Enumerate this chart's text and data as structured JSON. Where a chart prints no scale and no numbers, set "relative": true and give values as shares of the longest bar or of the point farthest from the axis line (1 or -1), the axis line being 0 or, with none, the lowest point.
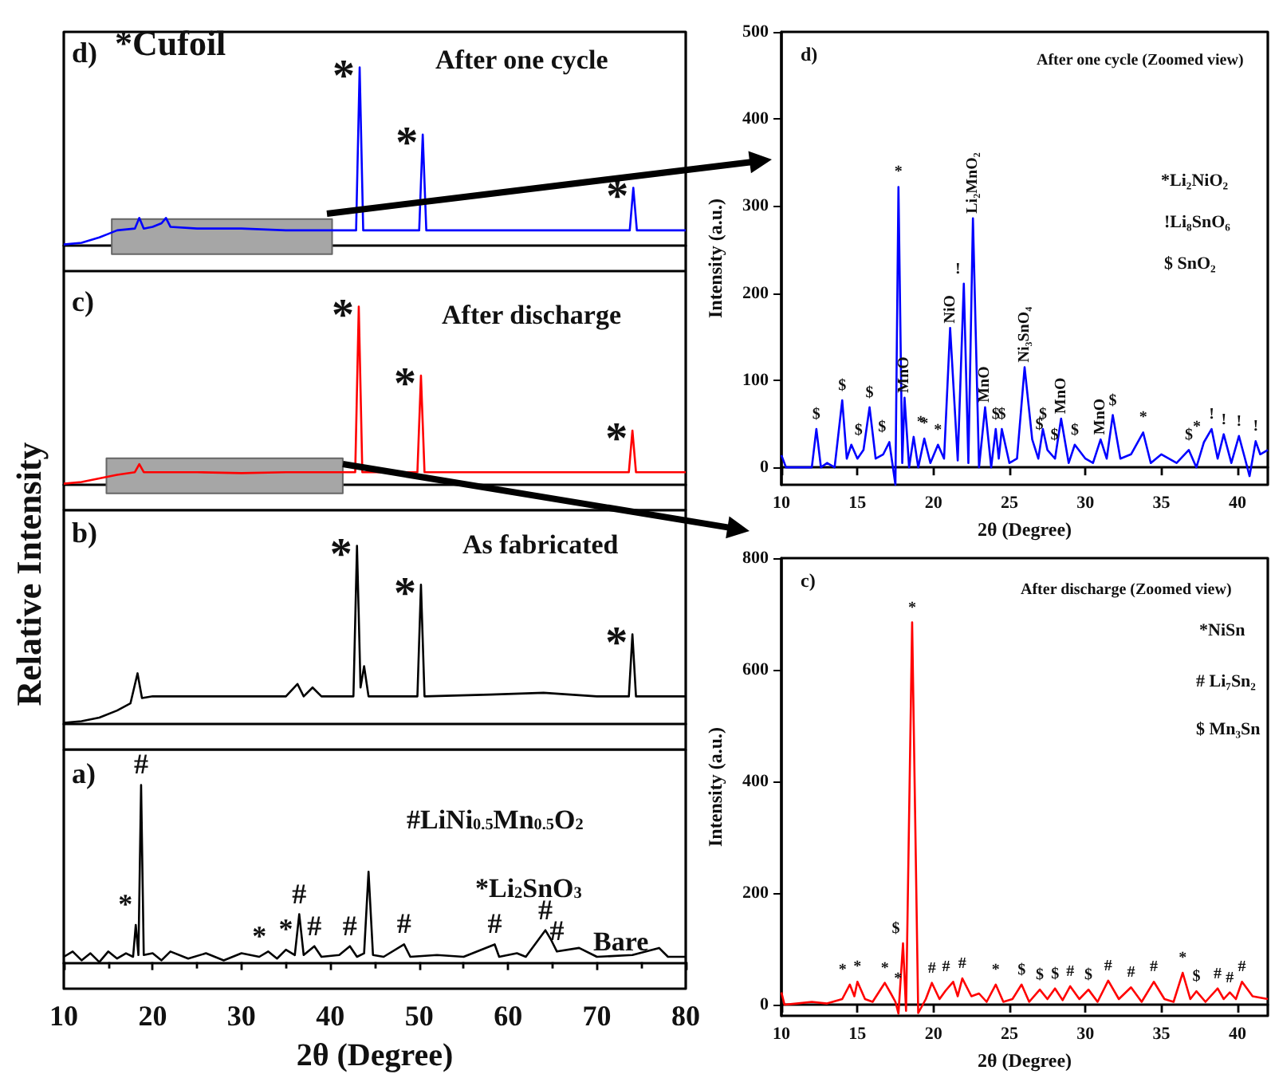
{
  "chart_data": [
    {
      "type": "line",
      "relative": true,
      "title": "After one cycle",
      "marker": "none",
      "tick_labels": false,
      "xlim": [
        10,
        80
      ],
      "x": [
        10,
        12,
        14,
        15,
        16,
        18,
        18.5,
        19,
        20,
        21,
        21.5,
        22,
        25,
        30,
        35,
        40,
        42.9,
        43.3,
        43.7,
        50,
        50.4,
        50.8,
        73.7,
        74.1,
        74.5,
        80
      ],
      "series": [
        {
          "color": "#0000ff",
          "values": [
            0,
            0.01,
            0.04,
            0.06,
            0.08,
            0.09,
            0.15,
            0.09,
            0.1,
            0.12,
            0.15,
            0.1,
            0.09,
            0.09,
            0.08,
            0.08,
            0.08,
            1,
            0.08,
            0.08,
            0.62,
            0.08,
            0.08,
            0.32,
            0.08,
            0.08
          ]
        }
      ],
      "bands": [
        {
          "axis": "x",
          "from": 15.4,
          "to": 40.2,
          "color": "#a6a6a6"
        }
      ],
      "annotations": [
        "d)",
        "*Cufoil",
        {
          "text": "*",
          "x": 43.3,
          "y": 1
        },
        {
          "text": "*",
          "x": 50.4,
          "y": 0.62
        },
        {
          "text": "*",
          "x": 74.1,
          "y": 0.32
        }
      ]
    },
    {
      "type": "line",
      "relative": true,
      "title": "After discharge",
      "marker": "none",
      "tick_labels": false,
      "xlim": [
        10,
        80
      ],
      "x": [
        10,
        12,
        14,
        16,
        18,
        18.5,
        19,
        25,
        30,
        35,
        40,
        42.8,
        43.2,
        43.6,
        49.8,
        50.2,
        50.6,
        73.6,
        74,
        74.4,
        80
      ],
      "series": [
        {
          "color": "#ff0000",
          "values": [
            0,
            0.01,
            0.03,
            0.05,
            0.065,
            0.11,
            0.065,
            0.065,
            0.06,
            0.065,
            0.065,
            0.065,
            1,
            0.065,
            0.065,
            0.61,
            0.065,
            0.065,
            0.3,
            0.065,
            0.065
          ]
        }
      ],
      "bands": [
        {
          "axis": "x",
          "from": 14.8,
          "to": 41.4,
          "color": "#a6a6a6"
        }
      ],
      "annotations": [
        "c)",
        {
          "text": "*",
          "x": 43.2,
          "y": 1
        },
        {
          "text": "*",
          "x": 50.2,
          "y": 0.61
        },
        {
          "text": "*",
          "x": 74,
          "y": 0.3
        }
      ]
    },
    {
      "type": "line",
      "relative": true,
      "title": "As fabricated",
      "ylabel": "Relative Intensity",
      "marker": "none",
      "tick_labels": false,
      "xlim": [
        10,
        80
      ],
      "x": [
        10,
        12,
        14,
        16,
        17.5,
        18.3,
        18.8,
        20,
        25,
        30,
        35,
        36.3,
        37,
        38,
        39,
        42.6,
        43,
        43.4,
        43.8,
        44.3,
        49.8,
        50.2,
        50.6,
        58,
        64,
        70,
        73.6,
        74,
        74.4,
        80
      ],
      "series": [
        {
          "color": "#000000",
          "values": [
            0,
            0.01,
            0.03,
            0.07,
            0.11,
            0.28,
            0.14,
            0.15,
            0.15,
            0.15,
            0.15,
            0.22,
            0.15,
            0.2,
            0.15,
            0.15,
            1,
            0.2,
            0.32,
            0.15,
            0.15,
            0.78,
            0.15,
            0.16,
            0.17,
            0.15,
            0.15,
            0.5,
            0.15,
            0.15
          ]
        }
      ],
      "annotations": [
        "b)",
        {
          "text": "*",
          "x": 43,
          "y": 1
        },
        {
          "text": "*",
          "x": 50.2,
          "y": 0.78
        },
        {
          "text": "*",
          "x": 74,
          "y": 0.5
        }
      ]
    },
    {
      "type": "line",
      "relative": true,
      "xlabel": "2θ (Degree)",
      "marker": "none",
      "tick_labels": "x",
      "xlim": [
        10,
        80
      ],
      "xticks": [
        10,
        20,
        30,
        40,
        50,
        60,
        70,
        80
      ],
      "x": [
        10,
        11,
        12,
        13,
        14,
        15,
        16,
        17,
        17.8,
        18.1,
        18.4,
        18.7,
        19,
        20,
        21,
        22,
        24,
        26,
        28,
        30,
        32,
        33,
        34,
        35,
        36,
        36.5,
        37,
        38.2,
        39,
        41,
        42.2,
        43,
        43.8,
        44.3,
        44.8,
        46,
        48.3,
        49,
        52,
        55,
        58.5,
        59,
        61,
        62,
        64.2,
        64.8,
        65.5,
        68,
        70,
        74,
        77,
        78,
        80
      ],
      "series": [
        {
          "color": "#000000",
          "values": [
            0.03,
            0.06,
            0.01,
            0.05,
            0,
            0.06,
            0.02,
            0.05,
            0.03,
            0.21,
            0.04,
            1,
            0.04,
            0.05,
            0.01,
            0.06,
            0.02,
            0.05,
            0.01,
            0.05,
            0.03,
            0.06,
            0.02,
            0.07,
            0.04,
            0.27,
            0.04,
            0.09,
            0.03,
            0.04,
            0.09,
            0.03,
            0.05,
            0.51,
            0.04,
            0.03,
            0.1,
            0.03,
            0.04,
            0.03,
            0.1,
            0.03,
            0.05,
            0.03,
            0.18,
            0.13,
            0.06,
            0.08,
            0.03,
            0.04,
            0.08,
            0.03,
            0.03
          ]
        }
      ],
      "annotations": [
        "a)",
        "#LiNi$_{0.5}$Mn$_{0.5}$O$_{2}$",
        "*Li$_{2}$SnO$_{3}$",
        "Bare",
        {
          "text": "*",
          "x": 18.1,
          "y": 0.21
        },
        {
          "text": "#",
          "x": 18.7,
          "y": 1
        },
        {
          "text": "*",
          "x": 32,
          "y": 0.03
        },
        {
          "text": "*",
          "x": 35,
          "y": 0.07
        },
        {
          "text": "#",
          "x": 36.5,
          "y": 0.27
        },
        {
          "text": "#",
          "x": 38.2,
          "y": 0.09
        },
        {
          "text": "#",
          "x": 42.2,
          "y": 0.09
        },
        {
          "text": "#",
          "x": 48.3,
          "y": 0.1
        },
        {
          "text": "#",
          "x": 58.5,
          "y": 0.1
        },
        {
          "text": "#",
          "x": 64.2,
          "y": 0.18
        },
        {
          "text": "#",
          "x": 65.5,
          "y": 0.06
        }
      ]
    },
    {
      "type": "line",
      "title": "After one cycle (Zoomed view)",
      "xlabel": "2θ (Degree)",
      "ylabel": "Intensity (a.u.)",
      "marker": "none",
      "xlim": [
        10,
        42
      ],
      "xticks": [
        10,
        15,
        20,
        25,
        30,
        35,
        40
      ],
      "ylim": [
        -20,
        500
      ],
      "yticks": [
        0,
        100,
        200,
        300,
        400,
        500
      ],
      "x": [
        10,
        10.3,
        11,
        12,
        12.3,
        12.6,
        13,
        13.5,
        14,
        14.3,
        14.6,
        15,
        15.4,
        15.8,
        16.2,
        16.7,
        17.1,
        17.5,
        17.7,
        17.95,
        18.1,
        18.4,
        18.7,
        19,
        19.4,
        19.8,
        20.3,
        20.7,
        21.1,
        21.6,
        22,
        22.3,
        22.6,
        23,
        23.4,
        23.8,
        24.1,
        24.3,
        24.5,
        25,
        25.5,
        26,
        26.5,
        26.9,
        27.2,
        27.5,
        28,
        28.4,
        28.9,
        29.3,
        30,
        30.5,
        31,
        31.4,
        31.8,
        32.3,
        33,
        33.8,
        34.3,
        35,
        36,
        36.8,
        37.3,
        37.8,
        38.3,
        38.7,
        39.1,
        39.6,
        40.1,
        40.5,
        40.8,
        41.2,
        41.5,
        42
      ],
      "series": [
        {
          "color": "#0000ff",
          "values": [
            14,
            0,
            0,
            0,
            44,
            0,
            5,
            0,
            77,
            10,
            26,
            10,
            20,
            69,
            10,
            15,
            29,
            -20,
            322,
            5,
            80,
            0,
            35,
            0,
            33,
            5,
            26,
            10,
            160,
            8,
            211,
            5,
            286,
            0,
            69,
            0,
            44,
            10,
            44,
            5,
            10,
            115,
            32,
            10,
            44,
            20,
            10,
            56,
            5,
            26,
            10,
            5,
            32,
            10,
            60,
            10,
            15,
            40,
            5,
            15,
            5,
            20,
            0,
            29,
            44,
            10,
            38,
            5,
            36,
            10,
            -10,
            30,
            15,
            20
          ]
        }
      ],
      "annotations": [
        "d)",
        "*Li₂NiO₂",
        "!Li₈SnO₆",
        "$ SnO₂",
        {
          "text": "$",
          "x": 12.3,
          "y": 44
        },
        {
          "text": "$",
          "x": 14,
          "y": 77
        },
        {
          "text": "$",
          "x": 14.6,
          "y": 26
        },
        {
          "text": "$",
          "x": 15.8,
          "y": 69
        },
        {
          "text": "$",
          "x": 17.1,
          "y": 29
        },
        {
          "text": "*",
          "x": 17.7,
          "y": 322
        },
        {
          "text": "MnO",
          "x": 18.1,
          "y": 80
        },
        {
          "text": "*",
          "x": 18.7,
          "y": 35
        },
        {
          "text": "*",
          "x": 19.4,
          "y": 33
        },
        {
          "text": "*",
          "x": 20.3,
          "y": 26
        },
        {
          "text": "NiO",
          "x": 21.1,
          "y": 160
        },
        {
          "text": "!",
          "x": 22,
          "y": 211
        },
        {
          "text": "Li₂MnO₂",
          "x": 22.6,
          "y": 286
        },
        {
          "text": "MnO",
          "x": 23.4,
          "y": 69
        },
        {
          "text": "$",
          "x": 24.1,
          "y": 44
        },
        {
          "text": "$",
          "x": 24.5,
          "y": 44
        },
        {
          "text": "Ni₃SnO₄",
          "x": 26,
          "y": 115
        },
        {
          "text": "$",
          "x": 26.5,
          "y": 32
        },
        {
          "text": "$",
          "x": 27.2,
          "y": 44
        },
        {
          "text": "$",
          "x": 27.5,
          "y": 20
        },
        {
          "text": "MnO",
          "x": 28.4,
          "y": 56
        },
        {
          "text": "$",
          "x": 29.3,
          "y": 26
        },
        {
          "text": "MnO",
          "x": 31,
          "y": 32
        },
        {
          "text": "$",
          "x": 31.8,
          "y": 60
        },
        {
          "text": "*",
          "x": 33.8,
          "y": 40
        },
        {
          "text": "$",
          "x": 36.8,
          "y": 20
        },
        {
          "text": "*",
          "x": 37.8,
          "y": 29
        },
        {
          "text": "!",
          "x": 38.3,
          "y": 44
        },
        {
          "text": "!",
          "x": 39.1,
          "y": 38
        },
        {
          "text": "!",
          "x": 40.1,
          "y": 36
        },
        {
          "text": "!",
          "x": 41.2,
          "y": 30
        }
      ]
    },
    {
      "type": "line",
      "title": "After discharge (Zoomed view)",
      "xlabel": "2θ (Degree)",
      "ylabel": "Intensity (a.u.)",
      "marker": "none",
      "xlim": [
        10,
        42
      ],
      "xticks": [
        10,
        15,
        20,
        25,
        30,
        35,
        40
      ],
      "ylim": [
        -20,
        800
      ],
      "yticks": [
        0,
        200,
        400,
        600,
        800
      ],
      "x": [
        10,
        10.2,
        11,
        12,
        13,
        14,
        14.5,
        14.8,
        15,
        15.5,
        16,
        16.8,
        17.2,
        17.5,
        17.7,
        18,
        18.2,
        18.6,
        19,
        19.5,
        19.9,
        20.4,
        20.8,
        21.3,
        21.6,
        21.9,
        22.5,
        23,
        23.5,
        24.1,
        24.6,
        25.2,
        25.8,
        26.3,
        27,
        27.5,
        28,
        28.5,
        29,
        29.6,
        30.2,
        30.8,
        31.5,
        32.2,
        33,
        33.7,
        34.5,
        35.2,
        35.8,
        36.4,
        36.9,
        37.3,
        37.9,
        38.7,
        39.1,
        39.5,
        39.9,
        40.3,
        41,
        42
      ],
      "series": [
        {
          "color": "#ff0000",
          "values": [
            22,
            0,
            2,
            5,
            2,
            10,
            36,
            15,
            41,
            10,
            5,
            39,
            20,
            5,
            -16,
            110,
            -11,
            685,
            -15,
            10,
            39,
            10,
            25,
            41,
            15,
            47,
            15,
            20,
            5,
            36,
            5,
            10,
            36,
            5,
            27,
            10,
            29,
            8,
            33,
            10,
            27,
            5,
            43,
            10,
            31,
            5,
            41,
            10,
            5,
            57,
            10,
            24,
            5,
            29,
            10,
            22,
            10,
            41,
            15,
            10
          ]
        }
      ],
      "annotations": [
        "c)",
        "*NiSn",
        "# Li₇Sn₂",
        "$ Mn₃Sn",
        {
          "text": "*",
          "x": 14.5,
          "y": 36
        },
        {
          "text": "*",
          "x": 15,
          "y": 41
        },
        {
          "text": "*",
          "x": 16.8,
          "y": 39
        },
        {
          "text": "*",
          "x": 17.2,
          "y": 20
        },
        {
          "text": "$",
          "x": 18,
          "y": 110
        },
        {
          "text": "*",
          "x": 18.6,
          "y": 685
        },
        {
          "text": "#",
          "x": 19.9,
          "y": 39
        },
        {
          "text": "#",
          "x": 21.3,
          "y": 41
        },
        {
          "text": "#",
          "x": 21.9,
          "y": 47
        },
        {
          "text": "*",
          "x": 24.1,
          "y": 36
        },
        {
          "text": "$",
          "x": 25.8,
          "y": 36
        },
        {
          "text": "$",
          "x": 27,
          "y": 27
        },
        {
          "text": "$",
          "x": 28,
          "y": 29
        },
        {
          "text": "#",
          "x": 29,
          "y": 33
        },
        {
          "text": "$",
          "x": 30.2,
          "y": 27
        },
        {
          "text": "#",
          "x": 31.5,
          "y": 43
        },
        {
          "text": "#",
          "x": 33,
          "y": 31
        },
        {
          "text": "#",
          "x": 34.5,
          "y": 41
        },
        {
          "text": "*",
          "x": 36.4,
          "y": 57
        },
        {
          "text": "$",
          "x": 37.3,
          "y": 24
        },
        {
          "text": "#",
          "x": 38.7,
          "y": 29
        },
        {
          "text": "#",
          "x": 39.5,
          "y": 22
        },
        {
          "text": "#",
          "x": 40.3,
          "y": 41
        }
      ]
    }
  ]
}
